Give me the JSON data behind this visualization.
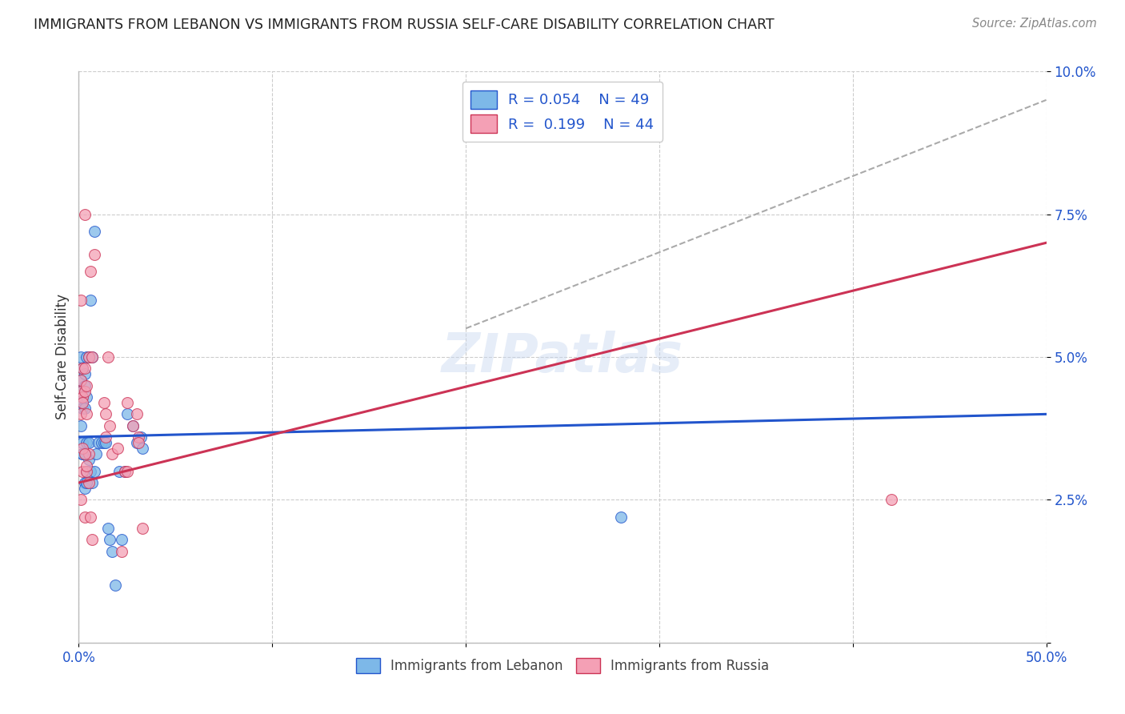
{
  "title": "IMMIGRANTS FROM LEBANON VS IMMIGRANTS FROM RUSSIA SELF-CARE DISABILITY CORRELATION CHART",
  "source": "Source: ZipAtlas.com",
  "ylabel": "Self-Care Disability",
  "xlim": [
    0.0,
    0.5
  ],
  "ylim": [
    0.0,
    0.1
  ],
  "xticks": [
    0.0,
    0.1,
    0.2,
    0.3,
    0.4,
    0.5
  ],
  "yticks": [
    0.0,
    0.025,
    0.05,
    0.075,
    0.1
  ],
  "yticklabels": [
    "",
    "2.5%",
    "5.0%",
    "7.5%",
    "10.0%"
  ],
  "color_lebanon": "#7db8e8",
  "color_russia": "#f4a0b5",
  "line_color_lebanon": "#2255cc",
  "line_color_russia": "#cc3355",
  "marker_size": 100,
  "watermark": "ZIPatlas",
  "background_color": "#ffffff",
  "grid_color": "#cccccc",
  "lebanon_x": [
    0.001,
    0.001,
    0.001,
    0.001,
    0.001,
    0.002,
    0.002,
    0.002,
    0.002,
    0.002,
    0.003,
    0.003,
    0.003,
    0.003,
    0.003,
    0.004,
    0.004,
    0.004,
    0.004,
    0.005,
    0.005,
    0.005,
    0.006,
    0.006,
    0.007,
    0.007,
    0.008,
    0.008,
    0.009,
    0.01,
    0.012,
    0.013,
    0.014,
    0.015,
    0.016,
    0.017,
    0.019,
    0.021,
    0.022,
    0.024,
    0.025,
    0.028,
    0.03,
    0.032,
    0.033,
    0.28,
    0.002,
    0.003,
    0.004
  ],
  "lebanon_y": [
    0.05,
    0.046,
    0.044,
    0.042,
    0.038,
    0.048,
    0.043,
    0.041,
    0.035,
    0.033,
    0.047,
    0.045,
    0.041,
    0.033,
    0.028,
    0.05,
    0.043,
    0.035,
    0.03,
    0.05,
    0.035,
    0.032,
    0.06,
    0.03,
    0.05,
    0.028,
    0.072,
    0.03,
    0.033,
    0.035,
    0.035,
    0.035,
    0.035,
    0.02,
    0.018,
    0.016,
    0.01,
    0.03,
    0.018,
    0.03,
    0.04,
    0.038,
    0.035,
    0.036,
    0.034,
    0.022,
    0.033,
    0.027,
    0.028
  ],
  "russia_x": [
    0.001,
    0.001,
    0.001,
    0.001,
    0.002,
    0.002,
    0.002,
    0.002,
    0.003,
    0.003,
    0.003,
    0.003,
    0.004,
    0.004,
    0.004,
    0.005,
    0.005,
    0.006,
    0.007,
    0.008,
    0.002,
    0.003,
    0.004,
    0.005,
    0.006,
    0.007,
    0.013,
    0.014,
    0.015,
    0.016,
    0.017,
    0.02,
    0.022,
    0.025,
    0.028,
    0.03,
    0.031,
    0.033,
    0.42,
    0.024,
    0.031,
    0.014,
    0.025,
    0.001
  ],
  "russia_y": [
    0.046,
    0.044,
    0.04,
    0.025,
    0.048,
    0.043,
    0.042,
    0.03,
    0.048,
    0.075,
    0.044,
    0.022,
    0.045,
    0.04,
    0.03,
    0.05,
    0.033,
    0.065,
    0.05,
    0.068,
    0.034,
    0.033,
    0.031,
    0.028,
    0.022,
    0.018,
    0.042,
    0.04,
    0.05,
    0.038,
    0.033,
    0.034,
    0.016,
    0.042,
    0.038,
    0.04,
    0.036,
    0.02,
    0.025,
    0.03,
    0.035,
    0.036,
    0.03,
    0.06
  ]
}
